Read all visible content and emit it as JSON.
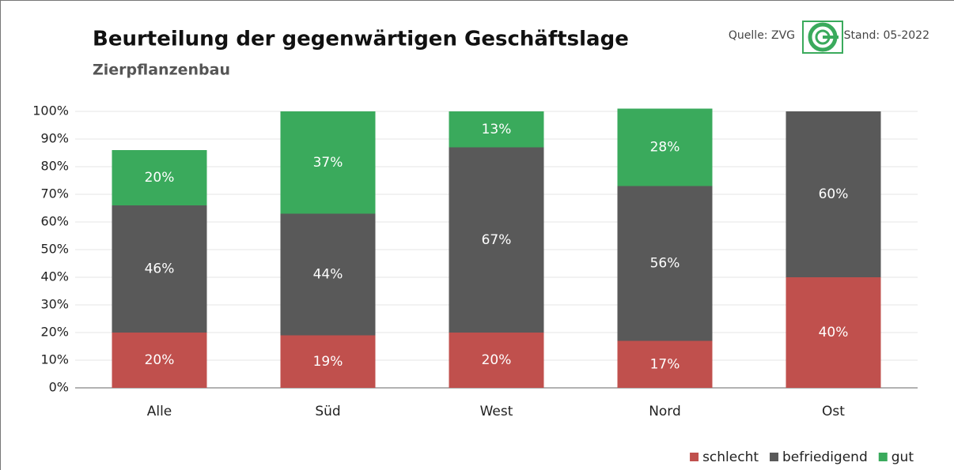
{
  "chart_data": {
    "type": "stacked_bar",
    "title": "Beurteilung der gegenwärtigen Geschäftslage",
    "subtitle": "Zierpflanzenbau",
    "source": "Quelle: ZVG",
    "date": "Stand: 05-2022",
    "categories": [
      "Alle",
      "Süd",
      "West",
      "Nord",
      "Ost"
    ],
    "series": [
      {
        "name": "schlecht",
        "color": "#c0504d",
        "values": [
          20,
          19,
          20,
          17,
          40
        ],
        "value_labels": [
          "20%",
          "19%",
          "20%",
          "17%",
          "40%"
        ]
      },
      {
        "name": "befriedigend",
        "color": "#595959",
        "values": [
          46,
          44,
          67,
          56,
          60
        ],
        "value_labels": [
          "46%",
          "44%",
          "67%",
          "56%",
          "60%"
        ]
      },
      {
        "name": "gut",
        "color": "#3aaa5c",
        "values": [
          20,
          37,
          13,
          28,
          null
        ],
        "value_labels": [
          "20%",
          "37%",
          "13%",
          "28%",
          null
        ]
      }
    ],
    "ylim": [
      0,
      100
    ],
    "yticks": [
      {
        "value": 0,
        "label": "0%"
      },
      {
        "value": 10,
        "label": "10%"
      },
      {
        "value": 20,
        "label": "20%"
      },
      {
        "value": 30,
        "label": "30%"
      },
      {
        "value": 40,
        "label": "40%"
      },
      {
        "value": 50,
        "label": "50%"
      },
      {
        "value": 60,
        "label": "60%"
      },
      {
        "value": 70,
        "label": "70%"
      },
      {
        "value": 80,
        "label": "80%"
      },
      {
        "value": 90,
        "label": "90%"
      },
      {
        "value": 100,
        "label": "100%"
      }
    ],
    "grid": true,
    "legend": "bottom-right"
  }
}
